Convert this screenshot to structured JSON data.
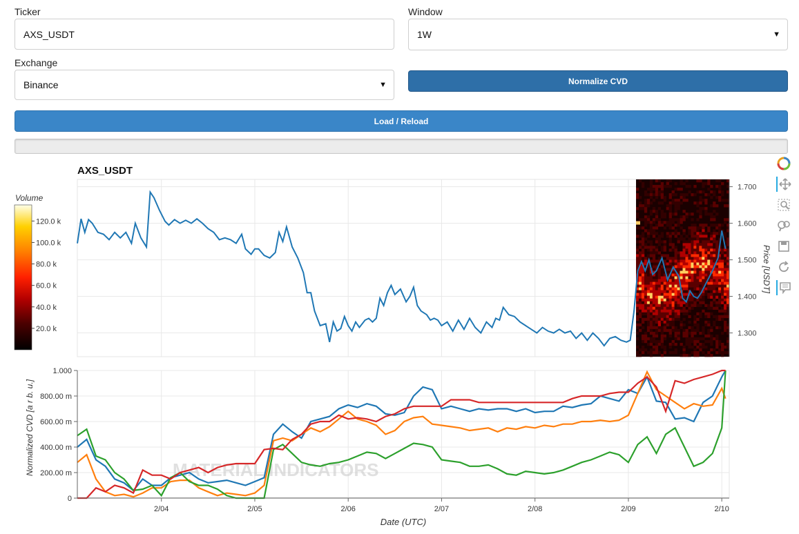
{
  "controls": {
    "ticker_label": "Ticker",
    "ticker_value": "AXS_USDT",
    "window_label": "Window",
    "window_value": "1W",
    "exchange_label": "Exchange",
    "exchange_value": "Binance",
    "normalize_label": "Normalize CVD",
    "load_label": "Load / Reload"
  },
  "colors": {
    "primary_button": "#3a86c8",
    "normalize_button": "#2e6fa8",
    "price_line": "#1f77b4",
    "cvd_series": [
      "#1f77b4",
      "#ff7f0e",
      "#2ca02c",
      "#d62728"
    ]
  },
  "watermark": "MATERIAL INDICATORS",
  "toolbar": [
    "bokeh-logo-icon",
    "pan-icon",
    "box-zoom-icon",
    "wheel-zoom-icon",
    "save-icon",
    "reset-icon",
    "hover-icon"
  ],
  "chart_data": [
    {
      "type": "line",
      "title": "AXS_USDT",
      "ylabel": "Price [USDT]",
      "ylim": [
        1.235,
        1.72
      ],
      "yticks": [
        "1.700",
        "1.600",
        "1.500",
        "1.400",
        "1.300"
      ],
      "xticks": [
        "2/04",
        "2/05",
        "2/06",
        "2/07",
        "2/08",
        "2/09",
        "2/10"
      ],
      "xlim": [
        3.1,
        10.08
      ],
      "colorbar": {
        "label": "Volume",
        "ticks": [
          "120.0 k",
          "100.0 k",
          "80.0 k",
          "60.0 k",
          "40.0 k",
          "20.0 k"
        ],
        "tick_values": [
          120,
          100,
          80,
          60,
          40,
          20
        ],
        "range": [
          0,
          135
        ]
      },
      "series": [
        {
          "x": [
            3.1,
            3.14,
            3.18,
            3.22,
            3.26,
            3.32,
            3.38,
            3.44,
            3.5,
            3.56,
            3.62,
            3.68,
            3.72,
            3.78,
            3.84,
            3.88,
            3.92,
            3.98,
            4.04,
            4.08,
            4.14,
            4.2,
            4.26,
            4.32,
            4.38,
            4.44,
            4.5,
            4.56,
            4.62,
            4.68,
            4.74,
            4.8,
            4.86,
            4.9,
            4.96,
            5.0,
            5.04,
            5.1,
            5.16,
            5.22,
            5.26,
            5.3,
            5.34,
            5.4,
            5.46,
            5.52,
            5.56,
            5.6,
            5.64,
            5.7,
            5.76,
            5.8,
            5.84,
            5.88,
            5.92,
            5.96,
            6.0,
            6.04,
            6.08,
            6.12,
            6.18,
            6.22,
            6.26,
            6.3,
            6.34,
            6.38,
            6.42,
            6.46,
            6.5,
            6.56,
            6.62,
            6.66,
            6.7,
            6.74,
            6.78,
            6.84,
            6.88,
            6.92,
            6.96,
            7.0,
            7.06,
            7.12,
            7.18,
            7.24,
            7.3,
            7.36,
            7.42,
            7.48,
            7.54,
            7.58,
            7.62,
            7.66,
            7.72,
            7.78,
            7.84,
            7.9,
            7.96,
            8.02,
            8.08,
            8.14,
            8.2,
            8.26,
            8.32,
            8.38,
            8.44,
            8.5,
            8.56,
            8.62,
            8.68,
            8.74,
            8.8,
            8.86,
            8.92,
            8.98,
            9.02,
            9.06,
            9.1,
            9.14,
            9.18,
            9.22,
            9.26,
            9.3,
            9.36,
            9.42,
            9.48,
            9.54,
            9.58,
            9.62,
            9.66,
            9.7,
            9.74,
            9.78,
            9.84,
            9.9,
            9.96,
            10.0,
            10.04
          ],
          "y": [
            1.545,
            1.612,
            1.575,
            1.61,
            1.6,
            1.575,
            1.57,
            1.555,
            1.575,
            1.56,
            1.575,
            1.545,
            1.6,
            1.56,
            1.535,
            1.685,
            1.67,
            1.635,
            1.605,
            1.595,
            1.61,
            1.6,
            1.608,
            1.6,
            1.612,
            1.6,
            1.585,
            1.575,
            1.555,
            1.56,
            1.555,
            1.545,
            1.57,
            1.53,
            1.515,
            1.53,
            1.53,
            1.512,
            1.505,
            1.52,
            1.575,
            1.55,
            1.59,
            1.535,
            1.505,
            1.465,
            1.41,
            1.41,
            1.36,
            1.32,
            1.325,
            1.275,
            1.33,
            1.305,
            1.312,
            1.345,
            1.32,
            1.305,
            1.33,
            1.315,
            1.335,
            1.34,
            1.33,
            1.34,
            1.395,
            1.375,
            1.41,
            1.43,
            1.405,
            1.42,
            1.385,
            1.4,
            1.425,
            1.375,
            1.36,
            1.35,
            1.335,
            1.34,
            1.335,
            1.32,
            1.33,
            1.305,
            1.335,
            1.31,
            1.34,
            1.315,
            1.3,
            1.33,
            1.315,
            1.34,
            1.335,
            1.37,
            1.35,
            1.345,
            1.33,
            1.32,
            1.31,
            1.3,
            1.315,
            1.305,
            1.3,
            1.31,
            1.3,
            1.305,
            1.285,
            1.3,
            1.28,
            1.3,
            1.285,
            1.265,
            1.285,
            1.29,
            1.28,
            1.275,
            1.28,
            1.36,
            1.47,
            1.495,
            1.47,
            1.5,
            1.46,
            1.47,
            1.505,
            1.445,
            1.48,
            1.455,
            1.395,
            1.385,
            1.415,
            1.4,
            1.395,
            1.41,
            1.44,
            1.47,
            1.505,
            1.58,
            1.53
          ]
        }
      ]
    },
    {
      "type": "line",
      "xlabel": "Date (UTC)",
      "ylabel": "Normalized CVD [a r b. u.]",
      "ylim": [
        0,
        1.0
      ],
      "yticks": [
        "1.000",
        "800.00 m",
        "600.00 m",
        "400.00 m",
        "200.00 m",
        "0"
      ],
      "xticks": [
        "2/04",
        "2/05",
        "2/06",
        "2/07",
        "2/08",
        "2/09",
        "2/10"
      ],
      "xlim": [
        3.1,
        10.08
      ],
      "x": [
        3.1,
        3.2,
        3.3,
        3.4,
        3.5,
        3.6,
        3.7,
        3.8,
        3.9,
        4.0,
        4.1,
        4.2,
        4.3,
        4.4,
        4.5,
        4.6,
        4.7,
        4.8,
        4.9,
        5.0,
        5.1,
        5.2,
        5.3,
        5.4,
        5.5,
        5.6,
        5.7,
        5.8,
        5.9,
        6.0,
        6.1,
        6.2,
        6.3,
        6.4,
        6.5,
        6.6,
        6.7,
        6.8,
        6.9,
        7.0,
        7.1,
        7.2,
        7.3,
        7.4,
        7.5,
        7.6,
        7.7,
        7.8,
        7.9,
        8.0,
        8.1,
        8.2,
        8.3,
        8.4,
        8.5,
        8.6,
        8.7,
        8.8,
        8.9,
        9.0,
        9.1,
        9.2,
        9.3,
        9.4,
        9.5,
        9.6,
        9.7,
        9.8,
        9.9,
        10.0,
        10.04
      ],
      "series": [
        {
          "values": [
            0.4,
            0.46,
            0.3,
            0.25,
            0.15,
            0.12,
            0.06,
            0.15,
            0.1,
            0.1,
            0.16,
            0.18,
            0.2,
            0.15,
            0.12,
            0.13,
            0.14,
            0.12,
            0.1,
            0.13,
            0.16,
            0.5,
            0.58,
            0.52,
            0.47,
            0.6,
            0.62,
            0.64,
            0.7,
            0.73,
            0.71,
            0.74,
            0.72,
            0.66,
            0.65,
            0.67,
            0.8,
            0.87,
            0.85,
            0.7,
            0.72,
            0.7,
            0.68,
            0.7,
            0.69,
            0.7,
            0.7,
            0.68,
            0.7,
            0.67,
            0.68,
            0.68,
            0.72,
            0.71,
            0.73,
            0.74,
            0.8,
            0.78,
            0.76,
            0.85,
            0.82,
            0.95,
            0.76,
            0.75,
            0.62,
            0.63,
            0.6,
            0.75,
            0.8,
            0.95,
            1.0
          ]
        },
        {
          "values": [
            0.28,
            0.34,
            0.15,
            0.05,
            0.02,
            0.03,
            0.01,
            0.04,
            0.08,
            0.08,
            0.13,
            0.14,
            0.14,
            0.08,
            0.05,
            0.02,
            0.04,
            0.03,
            0.02,
            0.04,
            0.1,
            0.45,
            0.47,
            0.45,
            0.5,
            0.55,
            0.52,
            0.56,
            0.62,
            0.68,
            0.62,
            0.6,
            0.57,
            0.5,
            0.53,
            0.6,
            0.63,
            0.64,
            0.58,
            0.57,
            0.56,
            0.55,
            0.53,
            0.54,
            0.55,
            0.52,
            0.55,
            0.54,
            0.56,
            0.55,
            0.57,
            0.56,
            0.58,
            0.58,
            0.6,
            0.6,
            0.61,
            0.6,
            0.61,
            0.65,
            0.82,
            0.99,
            0.85,
            0.8,
            0.75,
            0.7,
            0.74,
            0.72,
            0.73,
            0.86,
            0.78
          ]
        },
        {
          "values": [
            0.49,
            0.54,
            0.33,
            0.3,
            0.2,
            0.15,
            0.06,
            0.07,
            0.1,
            0.02,
            0.16,
            0.2,
            0.13,
            0.1,
            0.1,
            0.07,
            0.02,
            0.0,
            0.0,
            0.0,
            0.0,
            0.38,
            0.42,
            0.35,
            0.28,
            0.26,
            0.25,
            0.27,
            0.28,
            0.3,
            0.33,
            0.36,
            0.35,
            0.31,
            0.35,
            0.39,
            0.43,
            0.42,
            0.4,
            0.3,
            0.29,
            0.28,
            0.25,
            0.25,
            0.26,
            0.23,
            0.19,
            0.18,
            0.21,
            0.2,
            0.19,
            0.2,
            0.22,
            0.25,
            0.28,
            0.3,
            0.33,
            0.36,
            0.34,
            0.28,
            0.42,
            0.48,
            0.35,
            0.5,
            0.55,
            0.4,
            0.25,
            0.28,
            0.35,
            0.55,
            1.0
          ]
        },
        {
          "values": [
            0.0,
            0.0,
            0.08,
            0.05,
            0.1,
            0.08,
            0.04,
            0.22,
            0.18,
            0.18,
            0.15,
            0.2,
            0.22,
            0.24,
            0.2,
            0.24,
            0.26,
            0.27,
            0.27,
            0.27,
            0.38,
            0.39,
            0.38,
            0.46,
            0.5,
            0.58,
            0.6,
            0.6,
            0.65,
            0.62,
            0.63,
            0.62,
            0.6,
            0.64,
            0.66,
            0.7,
            0.72,
            0.72,
            0.72,
            0.72,
            0.77,
            0.77,
            0.77,
            0.75,
            0.75,
            0.75,
            0.75,
            0.75,
            0.75,
            0.75,
            0.75,
            0.75,
            0.75,
            0.78,
            0.8,
            0.8,
            0.8,
            0.82,
            0.83,
            0.83,
            0.9,
            0.95,
            0.87,
            0.68,
            0.92,
            0.9,
            0.93,
            0.95,
            0.97,
            1.0,
            1.0
          ]
        }
      ]
    }
  ]
}
